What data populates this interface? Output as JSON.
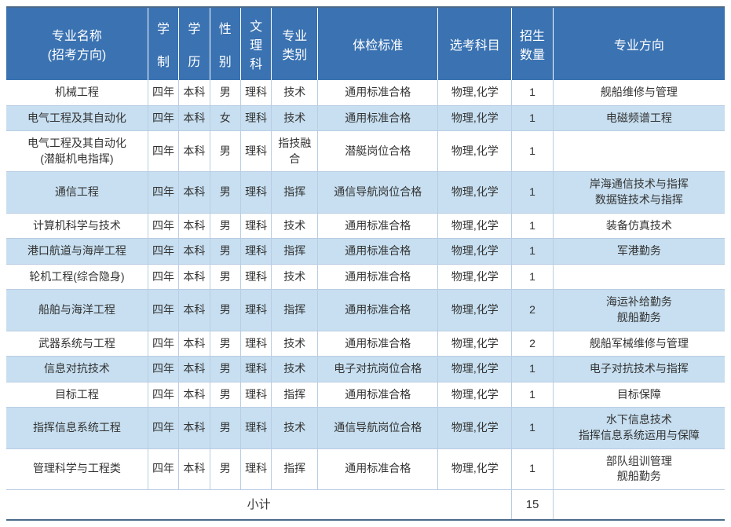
{
  "columns": [
    {
      "key": "name",
      "label_lines": [
        "专业名称",
        "(招考方向)"
      ]
    },
    {
      "key": "duration",
      "label_lines": [
        "学",
        "",
        "制"
      ]
    },
    {
      "key": "degree",
      "label_lines": [
        "学",
        "",
        "历"
      ]
    },
    {
      "key": "gender",
      "label_lines": [
        "性",
        "",
        "别"
      ]
    },
    {
      "key": "arts_sci",
      "label_lines": [
        "文",
        "理",
        "科"
      ]
    },
    {
      "key": "category",
      "label_lines": [
        "专业",
        "类别"
      ]
    },
    {
      "key": "physical",
      "label_lines": [
        "体检标准"
      ]
    },
    {
      "key": "subjects",
      "label_lines": [
        "选考科目"
      ]
    },
    {
      "key": "quota",
      "label_lines": [
        "招生",
        "数量"
      ]
    },
    {
      "key": "direction",
      "label_lines": [
        "专业方向"
      ]
    }
  ],
  "rows": [
    {
      "name_lines": [
        "机械工程"
      ],
      "duration": "四年",
      "degree": "本科",
      "gender": "男",
      "arts_sci": "理科",
      "category": "技术",
      "physical": "通用标准合格",
      "subjects": "物理,化学",
      "quota": "1",
      "direction_lines": [
        "舰船维修与管理"
      ]
    },
    {
      "name_lines": [
        "电气工程及其自动化"
      ],
      "duration": "四年",
      "degree": "本科",
      "gender": "女",
      "arts_sci": "理科",
      "category": "技术",
      "physical": "通用标准合格",
      "subjects": "物理,化学",
      "quota": "1",
      "direction_lines": [
        "电磁频谱工程"
      ]
    },
    {
      "name_lines": [
        "电气工程及其自动化",
        "(潜艇机电指挥)"
      ],
      "duration": "四年",
      "degree": "本科",
      "gender": "男",
      "arts_sci": "理科",
      "category_lines": [
        "指技融",
        "合"
      ],
      "physical": "潜艇岗位合格",
      "subjects": "物理,化学",
      "quota": "1",
      "direction_lines": [
        ""
      ]
    },
    {
      "name_lines": [
        "通信工程"
      ],
      "duration": "四年",
      "degree": "本科",
      "gender": "男",
      "arts_sci": "理科",
      "category": "指挥",
      "physical": "通信导航岗位合格",
      "subjects": "物理,化学",
      "quota": "1",
      "direction_lines": [
        "岸海通信技术与指挥",
        "数据链技术与指挥"
      ]
    },
    {
      "name_lines": [
        "计算机科学与技术"
      ],
      "duration": "四年",
      "degree": "本科",
      "gender": "男",
      "arts_sci": "理科",
      "category": "技术",
      "physical": "通用标准合格",
      "subjects": "物理,化学",
      "quota": "1",
      "direction_lines": [
        "装备仿真技术"
      ]
    },
    {
      "name_lines": [
        "港口航道与海岸工程"
      ],
      "duration": "四年",
      "degree": "本科",
      "gender": "男",
      "arts_sci": "理科",
      "category": "指挥",
      "physical": "通用标准合格",
      "subjects": "物理,化学",
      "quota": "1",
      "direction_lines": [
        "军港勤务"
      ]
    },
    {
      "name_lines": [
        "轮机工程(综合隐身)"
      ],
      "duration": "四年",
      "degree": "本科",
      "gender": "男",
      "arts_sci": "理科",
      "category": "技术",
      "physical": "通用标准合格",
      "subjects": "物理,化学",
      "quota": "1",
      "direction_lines": [
        ""
      ]
    },
    {
      "name_lines": [
        "船舶与海洋工程"
      ],
      "duration": "四年",
      "degree": "本科",
      "gender": "男",
      "arts_sci": "理科",
      "category": "指挥",
      "physical": "通用标准合格",
      "subjects": "物理,化学",
      "quota": "2",
      "direction_lines": [
        "海运补给勤务",
        "舰船勤务"
      ]
    },
    {
      "name_lines": [
        "武器系统与工程"
      ],
      "duration": "四年",
      "degree": "本科",
      "gender": "男",
      "arts_sci": "理科",
      "category": "技术",
      "physical": "通用标准合格",
      "subjects": "物理,化学",
      "quota": "2",
      "direction_lines": [
        "舰船军械维修与管理"
      ]
    },
    {
      "name_lines": [
        "信息对抗技术"
      ],
      "duration": "四年",
      "degree": "本科",
      "gender": "男",
      "arts_sci": "理科",
      "category": "技术",
      "physical": "电子对抗岗位合格",
      "subjects": "物理,化学",
      "quota": "1",
      "direction_lines": [
        "电子对抗技术与指挥"
      ]
    },
    {
      "name_lines": [
        "目标工程"
      ],
      "duration": "四年",
      "degree": "本科",
      "gender": "男",
      "arts_sci": "理科",
      "category": "指挥",
      "physical": "通用标准合格",
      "subjects": "物理,化学",
      "quota": "1",
      "direction_lines": [
        "目标保障"
      ]
    },
    {
      "name_lines": [
        "指挥信息系统工程"
      ],
      "duration": "四年",
      "degree": "本科",
      "gender": "男",
      "arts_sci": "理科",
      "category": "技术",
      "physical": "通信导航岗位合格",
      "subjects": "物理,化学",
      "quota": "1",
      "direction_lines": [
        "水下信息技术",
        "指挥信息系统运用与保障"
      ]
    },
    {
      "name_lines": [
        "管理科学与工程类"
      ],
      "duration": "四年",
      "degree": "本科",
      "gender": "男",
      "arts_sci": "理科",
      "category": "指挥",
      "physical": "通用标准合格",
      "subjects": "物理,化学",
      "quota": "1",
      "direction_lines": [
        "部队组训管理",
        "舰船勤务"
      ]
    }
  ],
  "footer": {
    "label": "小计",
    "total": "15"
  },
  "colors": {
    "header_bg": "#3a72b2",
    "header_text": "#ffffff",
    "row_even_bg": "#c7dff0",
    "row_odd_bg": "#ffffff",
    "border": "#b9cde3",
    "outer_border": "#4a6a8a"
  }
}
